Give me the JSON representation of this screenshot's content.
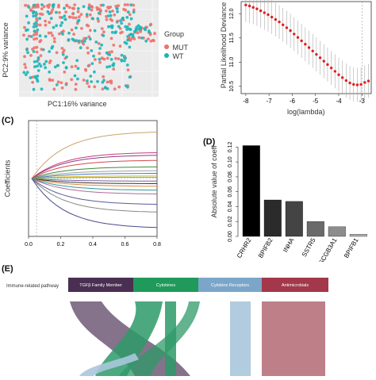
{
  "panels": {
    "B": {
      "tag": ""
    },
    "C": {
      "tag": "(C)"
    },
    "D": {
      "tag": "(D)"
    },
    "E": {
      "tag": "(E)"
    }
  },
  "chart_data": [
    {
      "id": "pca",
      "type": "scatter",
      "title": "",
      "xlabel": "PC1:16% variance",
      "ylabel": "PC2:9% variance",
      "legend": {
        "title": "Group",
        "placement": "right",
        "entries": [
          "MUT",
          "WT"
        ]
      },
      "colors": {
        "MUT": "#f0716b",
        "WT": "#19b6b9"
      },
      "background": "#ebebeb",
      "grid": true
    },
    {
      "id": "lasso-cv",
      "type": "scatter",
      "xlabel": "log(lambda)",
      "ylabel": "Partial Likelihood Deviance",
      "xticks": [
        "-8",
        "-7",
        "-6",
        "-5",
        "-4",
        "-3"
      ],
      "yticks": [
        "10.5",
        "11.0",
        "11.5",
        "12.0"
      ],
      "xlim": [
        -8.2,
        -2.6
      ],
      "ylim": [
        10.35,
        12.25
      ],
      "vlines": [
        -3.0
      ],
      "color": "#e02020",
      "x": [
        -8.0,
        -7.84,
        -7.68,
        -7.52,
        -7.36,
        -7.2,
        -7.04,
        -6.88,
        -6.72,
        -6.56,
        -6.4,
        -6.24,
        -6.08,
        -5.92,
        -5.76,
        -5.6,
        -5.44,
        -5.28,
        -5.12,
        -4.96,
        -4.8,
        -4.64,
        -4.48,
        -4.32,
        -4.16,
        -4.0,
        -3.84,
        -3.68,
        -3.52,
        -3.36,
        -3.2,
        -3.04,
        -2.88,
        -2.72
      ],
      "y": [
        12.18,
        12.16,
        12.13,
        12.1,
        12.06,
        12.02,
        11.98,
        11.93,
        11.88,
        11.83,
        11.77,
        11.71,
        11.65,
        11.58,
        11.51,
        11.44,
        11.37,
        11.3,
        11.23,
        11.16,
        11.09,
        11.02,
        10.95,
        10.88,
        10.81,
        10.74,
        10.68,
        10.62,
        10.57,
        10.54,
        10.53,
        10.54,
        10.58,
        10.61
      ],
      "err": 0.35
    },
    {
      "id": "lasso-path",
      "type": "line",
      "xlabel": "",
      "ylabel": "Coefficients",
      "xticks": [
        "0.0",
        "0.2",
        "0.4",
        "0.6",
        "0.8"
      ],
      "xlim": [
        0,
        0.8
      ],
      "ylim": [
        -0.22,
        0.22
      ],
      "vlines": [
        0.05
      ],
      "paths": [
        {
          "color": "#c8a56a",
          "end": 0.18
        },
        {
          "color": "#cc3b7a",
          "end": 0.1
        },
        {
          "color": "#8b3a8a",
          "end": 0.09
        },
        {
          "color": "#d24a4a",
          "end": 0.07
        },
        {
          "color": "#3b8a3b",
          "end": 0.045
        },
        {
          "color": "#a0a0a0",
          "end": 0.03
        },
        {
          "color": "#4a7ac0",
          "end": 0.02
        },
        {
          "color": "#e8c23a",
          "end": 0.01
        },
        {
          "color": "#6ab04c",
          "end": 0.005
        },
        {
          "color": "#7f5fa0",
          "end": -0.01
        },
        {
          "color": "#333333",
          "end": -0.02
        },
        {
          "color": "#d98a3a",
          "end": -0.03
        },
        {
          "color": "#2a9aa0",
          "end": -0.045
        },
        {
          "color": "#b06a9a",
          "end": -0.06
        },
        {
          "color": "#5a5a9a",
          "end": -0.1
        },
        {
          "color": "#888888",
          "end": -0.13
        },
        {
          "color": "#4a4a8a",
          "end": -0.19
        }
      ]
    },
    {
      "id": "coef-bars",
      "type": "bar",
      "ylabel": "Absolute value of coeff",
      "categories": [
        "CRHR2",
        "BPIFB2",
        "INHA",
        "SSTR5",
        "SCGB3A1",
        "BPIFB1"
      ],
      "values": [
        0.122,
        0.049,
        0.047,
        0.02,
        0.013,
        0.003
      ],
      "yticks": [
        "0.00",
        "0.02",
        "0.04",
        "0.06",
        "0.08",
        "0.10",
        "0.12"
      ],
      "ylim": [
        0,
        0.13
      ],
      "colors": [
        "#000000",
        "#2b2b2b",
        "#444444",
        "#6a6a6a",
        "#8c8c8c",
        "#b0b0b0"
      ]
    },
    {
      "id": "sankey",
      "type": "sankey",
      "row_label": "Immune-related pathway",
      "nodes": [
        {
          "label": "TGFβ Family Member",
          "color": "#4a2f52"
        },
        {
          "label": "Cytokines",
          "color": "#1f9a5a"
        },
        {
          "label": "Cytokine Receptors",
          "color": "#7ba6c9"
        },
        {
          "label": "Antimicrobials",
          "color": "#a3384a"
        }
      ]
    }
  ]
}
